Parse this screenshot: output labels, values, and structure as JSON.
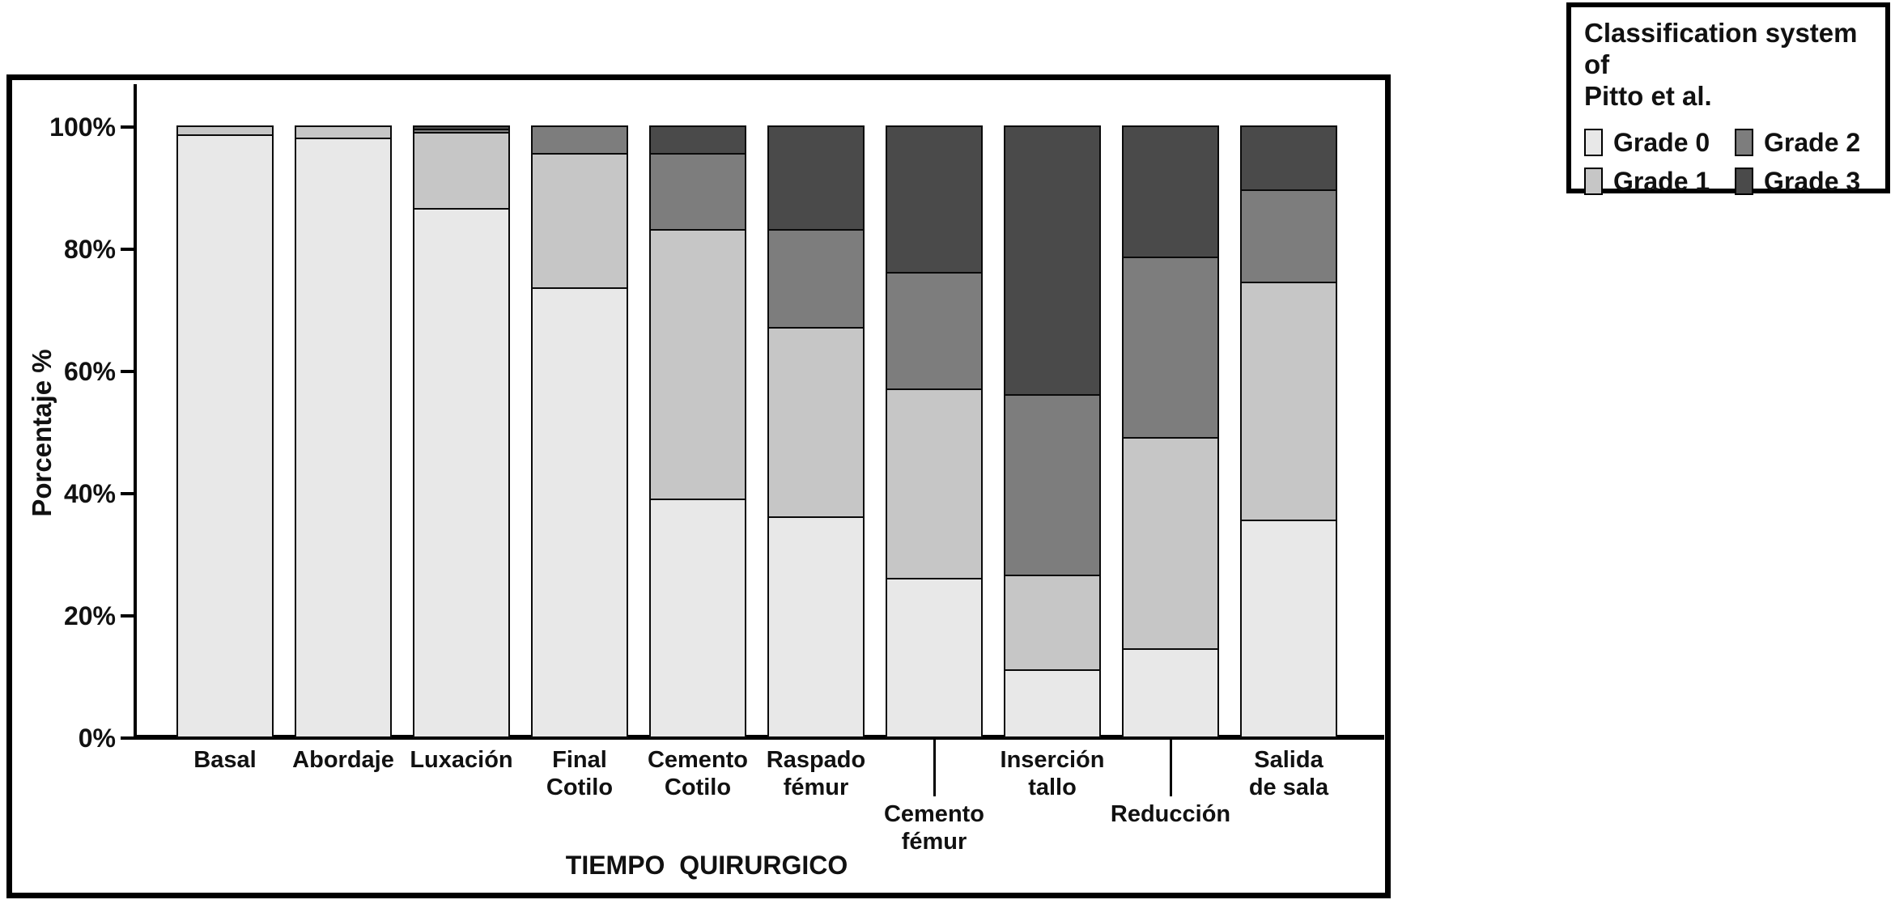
{
  "figure": {
    "y_axis_title": "Porcentaje %",
    "x_axis_title": "TIEMPO  QUIRURGICO",
    "y_tick_labels": [
      "0%",
      "20%",
      "40%",
      "60%",
      "80%",
      "100%"
    ]
  },
  "legend": {
    "title_line1": "Classification system of",
    "title_line2": "Pitto et al.",
    "items": [
      {
        "label": "Grade 0",
        "color": "#e8e8e8"
      },
      {
        "label": "Grade 1",
        "color": "#c6c6c6"
      },
      {
        "label": "Grade 2",
        "color": "#7d7d7d"
      },
      {
        "label": "Grade 3",
        "color": "#4a4a4a"
      }
    ]
  },
  "chart_data": {
    "type": "bar",
    "stacked": true,
    "stacking": "percent",
    "title": "",
    "xlabel": "TIEMPO QUIRURGICO",
    "ylabel": "Porcentaje %",
    "ylim": [
      0,
      100
    ],
    "y_ticks": [
      0,
      20,
      40,
      60,
      80,
      100
    ],
    "grid": false,
    "legend_title": "Classification system of Pitto et al.",
    "legend_position": "outside top-right",
    "categories": [
      "Basal",
      "Abordaje",
      "Luxación",
      "Final Cotilo",
      "Cemento Cotilo",
      "Raspado fémur",
      "Cemento fémur",
      "Inserción tallo",
      "Reducción",
      "Salida de sala"
    ],
    "category_label_lines": [
      [
        "Basal"
      ],
      [
        "Abordaje"
      ],
      [
        "Luxación"
      ],
      [
        "Final",
        "Cotilo"
      ],
      [
        "Cemento",
        "Cotilo"
      ],
      [
        "Raspado",
        "fémur"
      ],
      [
        "Cemento",
        "fémur"
      ],
      [
        "Inserción",
        "tallo"
      ],
      [
        "Reducción"
      ],
      [
        "Salida",
        "de sala"
      ]
    ],
    "staggered_low_label_indices": [
      6,
      8
    ],
    "series": [
      {
        "name": "Grade 0",
        "color": "#e8e8e8",
        "values": [
          98.5,
          98,
          86.5,
          73.5,
          39,
          36,
          26,
          11,
          14.5,
          35.5
        ]
      },
      {
        "name": "Grade 1",
        "color": "#c6c6c6",
        "values": [
          1.5,
          2,
          12.5,
          22,
          44,
          31,
          31,
          15.5,
          34.5,
          39
        ]
      },
      {
        "name": "Grade 2",
        "color": "#7d7d7d",
        "values": [
          0,
          0,
          0.5,
          4.5,
          12.5,
          16,
          19,
          29.5,
          29.5,
          15
        ]
      },
      {
        "name": "Grade 3",
        "color": "#4a4a4a",
        "values": [
          0,
          0,
          0.5,
          0,
          4.5,
          17,
          24,
          44,
          21.5,
          10.5
        ]
      }
    ]
  }
}
